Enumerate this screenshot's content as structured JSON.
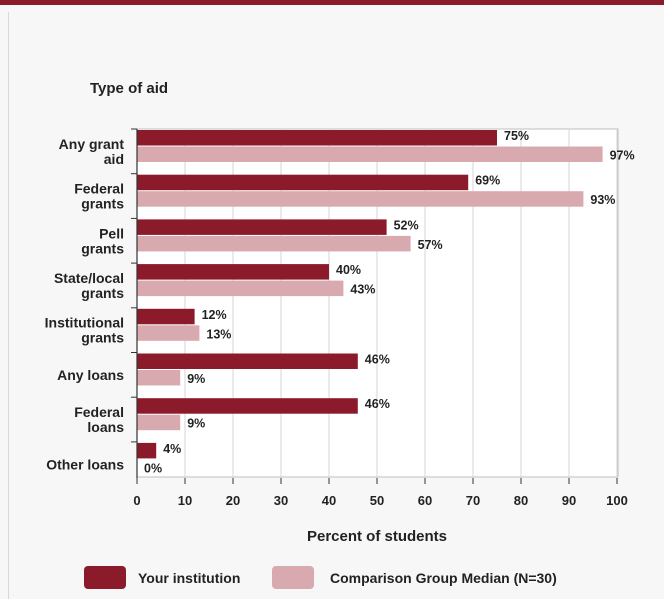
{
  "chart_data": {
    "type": "bar",
    "orientation": "horizontal",
    "y_heading": "Type of aid",
    "xlabel": "Percent of students",
    "xlim": [
      0,
      100
    ],
    "xticks": [
      0,
      10,
      20,
      30,
      40,
      50,
      60,
      70,
      80,
      90,
      100
    ],
    "grid": true,
    "legend_position": "bottom",
    "categories": [
      [
        "Any grant",
        "aid"
      ],
      [
        "Federal",
        "grants"
      ],
      [
        "Pell",
        "grants"
      ],
      [
        "State/local",
        "grants"
      ],
      [
        "Institutional",
        "grants"
      ],
      [
        "Any loans"
      ],
      [
        "Federal",
        "loans"
      ],
      [
        "Other loans"
      ]
    ],
    "series": [
      {
        "name": "Your institution",
        "color": "#8b1a2b",
        "values": [
          75,
          69,
          52,
          40,
          12,
          46,
          46,
          4
        ],
        "labels": [
          "75%",
          "69%",
          "52%",
          "40%",
          "12%",
          "46%",
          "46%",
          "4%"
        ]
      },
      {
        "name": "Comparison Group Median (N=30)",
        "color": "#d9a9b0",
        "values": [
          97,
          93,
          57,
          43,
          13,
          9,
          9,
          0
        ],
        "labels": [
          "97%",
          "93%",
          "57%",
          "43%",
          "13%",
          "9%",
          "9%",
          "0%"
        ]
      }
    ]
  }
}
